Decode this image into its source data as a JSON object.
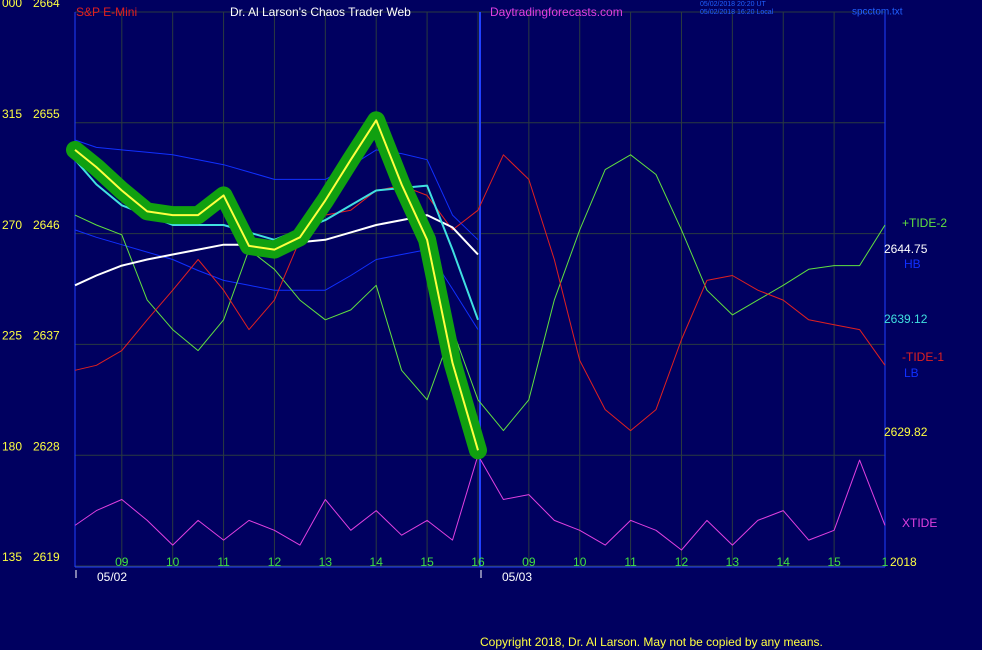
{
  "chart_data": {
    "type": "line",
    "symbol": "S&P E-Mini",
    "title": "Dr. Al Larson's Chaos Trader Web",
    "site": "Daytradingforecasts.com",
    "timestamps": [
      "05/02/2018 20:20 UT",
      "05/02/2018 16:20 Local"
    ],
    "file": "spcctom.txt",
    "copyright": "Copyright 2018, Dr. Al Larson. May not be copied by any means.",
    "dates": [
      "05/02",
      "05/03"
    ],
    "year": "2018",
    "xlim": [
      0.08,
      16
    ],
    "xticks": [
      {
        "value": 1,
        "label": "09"
      },
      {
        "value": 2,
        "label": "10"
      },
      {
        "value": 3,
        "label": "11"
      },
      {
        "value": 4,
        "label": "12"
      },
      {
        "value": 5,
        "label": "13"
      },
      {
        "value": 6,
        "label": "14"
      },
      {
        "value": 7,
        "label": "15"
      },
      {
        "value": 8,
        "label": "16"
      },
      {
        "value": 9,
        "label": "09"
      },
      {
        "value": 10,
        "label": "10"
      },
      {
        "value": 11,
        "label": "11"
      },
      {
        "value": 12,
        "label": "12"
      },
      {
        "value": 13,
        "label": "13"
      },
      {
        "value": 14,
        "label": "14"
      },
      {
        "value": 15,
        "label": "15"
      },
      {
        "value": 16,
        "label": "1"
      }
    ],
    "ylim": [
      2619,
      2664
    ],
    "yticks": [
      2619,
      2628,
      2637,
      2646,
      2655,
      2664
    ],
    "angle_labels": [
      "135",
      "180",
      "225",
      "270",
      "315",
      "000"
    ],
    "grid": true,
    "x": [
      0.08,
      0.5,
      1,
      1.5,
      2,
      2.5,
      3,
      3.5,
      4,
      4.5,
      5,
      5.5,
      6,
      6.5,
      7,
      7.5,
      8,
      8.5,
      9,
      9.5,
      10,
      10.5,
      11,
      11.5,
      12,
      12.5,
      13,
      13.5,
      14,
      14.5,
      15,
      15.5,
      16
    ],
    "series": [
      {
        "name": "HB",
        "color": "#1030ff",
        "values": [
          2653.6,
          2653,
          2652.8,
          2652.6,
          2652.4,
          2652,
          2651.6,
          2651,
          2650.4,
          2650.4,
          2650.4,
          2651.5,
          2652.8,
          2652.5,
          2652,
          2647.5,
          2645.5,
          null,
          null,
          null,
          null,
          null,
          null,
          null,
          null,
          null,
          null,
          null,
          null,
          null,
          null,
          null,
          null
        ]
      },
      {
        "name": "LB",
        "color": "#1030ff",
        "values": [
          2646.3,
          2645.7,
          2645.1,
          2644.5,
          2643.9,
          2643,
          2642.2,
          2641.8,
          2641.4,
          2641.4,
          2641.4,
          2642.6,
          2643.9,
          2644.3,
          2644.7,
          2641.5,
          2638.2,
          null,
          null,
          null,
          null,
          null,
          null,
          null,
          null,
          null,
          null,
          null,
          null,
          null,
          null,
          null,
          null
        ]
      },
      {
        "name": "+TIDE-2",
        "color": "#60e040",
        "values": [
          2647.5,
          2646.7,
          2645.9,
          2640.6,
          2638.2,
          2636.5,
          2639.0,
          2644.7,
          2643.1,
          2640.6,
          2639.0,
          2639.8,
          2641.8,
          2634.9,
          2632.5,
          2638.2,
          2632.5,
          2630.0,
          2632.5,
          2640.6,
          2646.3,
          2651.2,
          2652.4,
          2650.8,
          2646.3,
          2641.4,
          2639.4,
          2640.6,
          2641.8,
          2643.1,
          2643.4,
          2643.4,
          2646.7
        ]
      },
      {
        "name": "-TIDE-1",
        "color": "#e02020",
        "values": [
          2634.9,
          2635.3,
          2636.5,
          2639.0,
          2641.4,
          2643.9,
          2641.4,
          2638.2,
          2640.6,
          2645.5,
          2647.5,
          2647.9,
          2649.5,
          2649.9,
          2649.1,
          2646.3,
          2647.9,
          2652.4,
          2650.4,
          2643.9,
          2635.7,
          2631.7,
          2630.0,
          2631.7,
          2637.4,
          2642.2,
          2642.6,
          2641.4,
          2640.6,
          2639.0,
          2638.6,
          2638.2,
          2635.3
        ]
      },
      {
        "name": "XTIDE",
        "color": "#e040e0",
        "values": [
          2622.3,
          2623.5,
          2624.4,
          2622.7,
          2620.7,
          2622.7,
          2621.1,
          2622.7,
          2621.9,
          2620.7,
          2624.4,
          2621.9,
          2623.5,
          2621.5,
          2622.7,
          2621.1,
          2628.0,
          2624.4,
          2624.8,
          2622.7,
          2621.9,
          2620.7,
          2622.7,
          2621.9,
          2620.3,
          2622.7,
          2620.7,
          2622.7,
          2623.5,
          2621.1,
          2621.9,
          2627.6,
          2622.3
        ]
      },
      {
        "color": "#ffffff",
        "width": 2,
        "values": [
          2641.8,
          2642.6,
          2643.4,
          2643.9,
          2644.3,
          2644.7,
          2645.1,
          2645.1,
          2645.1,
          2645.3,
          2645.5,
          2646.1,
          2646.7,
          2647.1,
          2647.5,
          2646.5,
          2644.3,
          null,
          null,
          null,
          null,
          null,
          null,
          null,
          null,
          null,
          null,
          null,
          null,
          null,
          null,
          null,
          null
        ]
      },
      {
        "color": "#40e0e0",
        "width": 2,
        "values": [
          2652,
          2650,
          2648.3,
          2647.5,
          2646.7,
          2646.7,
          2646.7,
          2646.1,
          2645.5,
          2646.3,
          2647.1,
          2648.3,
          2649.5,
          2649.7,
          2649.9,
          2644.7,
          2639,
          null,
          null,
          null,
          null,
          null,
          null,
          null,
          null,
          null,
          null,
          null,
          null,
          null,
          null,
          null,
          null
        ]
      },
      {
        "color": "#ffff40",
        "width": 2,
        "halo": "#10a010",
        "values": [
          2652.8,
          2651.4,
          2649.5,
          2647.8,
          2647.5,
          2647.5,
          2649.1,
          2645,
          2644.7,
          2645.7,
          2648.7,
          2652,
          2655.2,
          2650,
          2645.5,
          2635.5,
          2628.4,
          null,
          null,
          null,
          null,
          null,
          null,
          null,
          null,
          null,
          null,
          null,
          null,
          null,
          null,
          null,
          null
        ]
      }
    ],
    "price_labels": [
      {
        "value": 2644.75,
        "color": "#ffffff"
      },
      {
        "value": 2639.12,
        "color": "#40e0e0"
      },
      {
        "value": 2629.82,
        "color": "#ffff40"
      }
    ]
  }
}
